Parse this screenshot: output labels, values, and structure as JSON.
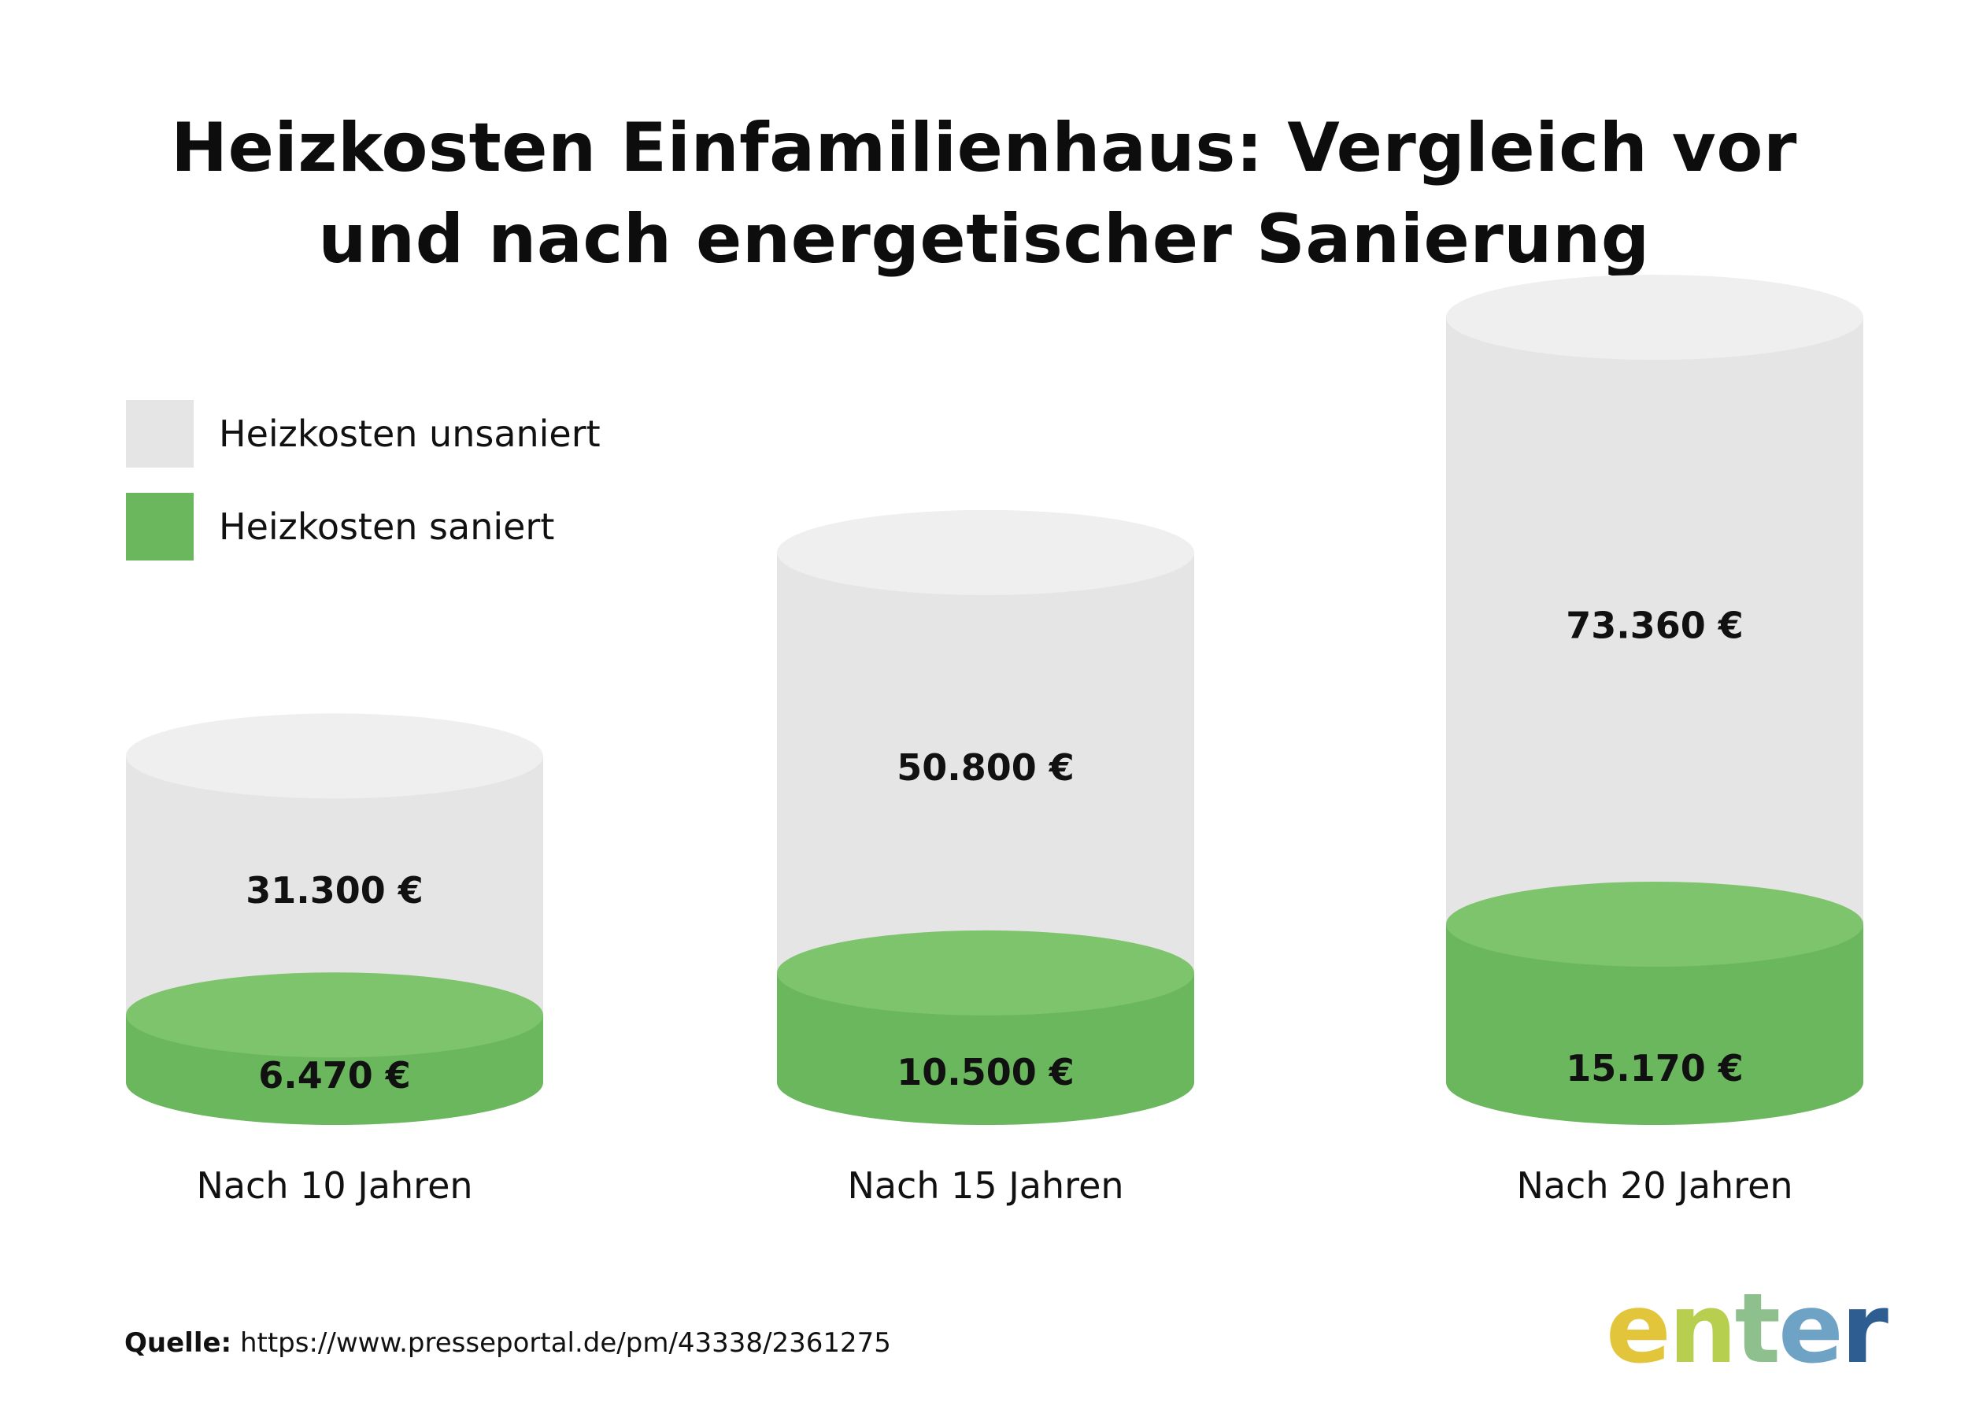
{
  "title_lines": [
    "Heizkosten Einfamilienhaus: Vergleich vor",
    "und nach energetischer Sanierung"
  ],
  "legend": [
    {
      "label": "Heizkosten unsaniert",
      "color": "#e5e5e5"
    },
    {
      "label": "Heizkosten saniert",
      "color": "#6ab75d"
    }
  ],
  "chart_data": {
    "type": "bar",
    "categories": [
      "Nach 10 Jahren",
      "Nach 15 Jahren",
      "Nach 20 Jahren"
    ],
    "series": [
      {
        "name": "Heizkosten unsaniert",
        "values": [
          31300,
          50800,
          73360
        ],
        "labels": [
          "31.300 €",
          "50.800 €",
          "73.360 €"
        ],
        "color": "#e5e5e5",
        "top_color": "#efefef"
      },
      {
        "name": "Heizkosten saniert",
        "values": [
          6470,
          10500,
          15170
        ],
        "labels": [
          "6.470 €",
          "10.500 €",
          "15.170 €"
        ],
        "color": "#6ab75d",
        "top_color": "#7dc46c"
      }
    ],
    "style": "cylinder",
    "legend_position": "top-left",
    "grid": false
  },
  "source": {
    "label": "Quelle:",
    "url": "https://www.presseportal.de/pm/43338/2361275"
  },
  "logo": {
    "text": "enter",
    "colors": [
      "#e2c53a",
      "#b7cf4f",
      "#8ec08d",
      "#6fa3c6",
      "#2e5d91"
    ]
  }
}
